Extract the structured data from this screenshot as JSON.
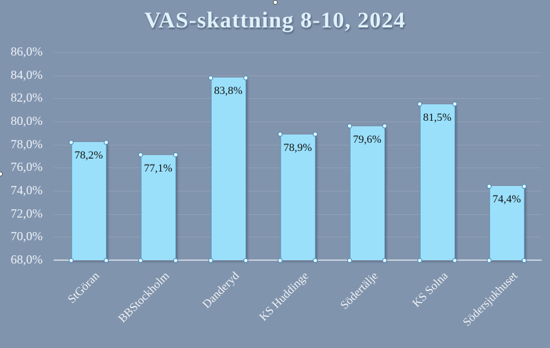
{
  "chart_data": {
    "type": "bar",
    "title": "VAS-skattning 8-10, 2024",
    "xlabel": "",
    "ylabel": "",
    "categories": [
      "StGöran",
      "BBStockholm",
      "Danderyd",
      "KS Huddinge",
      "Södertälje",
      "KS Solna",
      "Södersjukhuset"
    ],
    "values": [
      78.2,
      77.1,
      83.8,
      78.9,
      79.6,
      81.5,
      74.4
    ],
    "data_labels": [
      "78,2%",
      "77,1%",
      "83,8%",
      "78,9%",
      "79,6%",
      "81,5%",
      "74,4%"
    ],
    "ylim": [
      68.0,
      86.0
    ],
    "yticks": [
      "68,0%",
      "70,0%",
      "72,0%",
      "74,0%",
      "76,0%",
      "78,0%",
      "80,0%",
      "82,0%",
      "84,0%",
      "86,0%"
    ],
    "grid": true,
    "legend": "none",
    "colors": {
      "bar": "#9be0fb",
      "background": "#8194ad",
      "title": "#dff2fb"
    }
  }
}
